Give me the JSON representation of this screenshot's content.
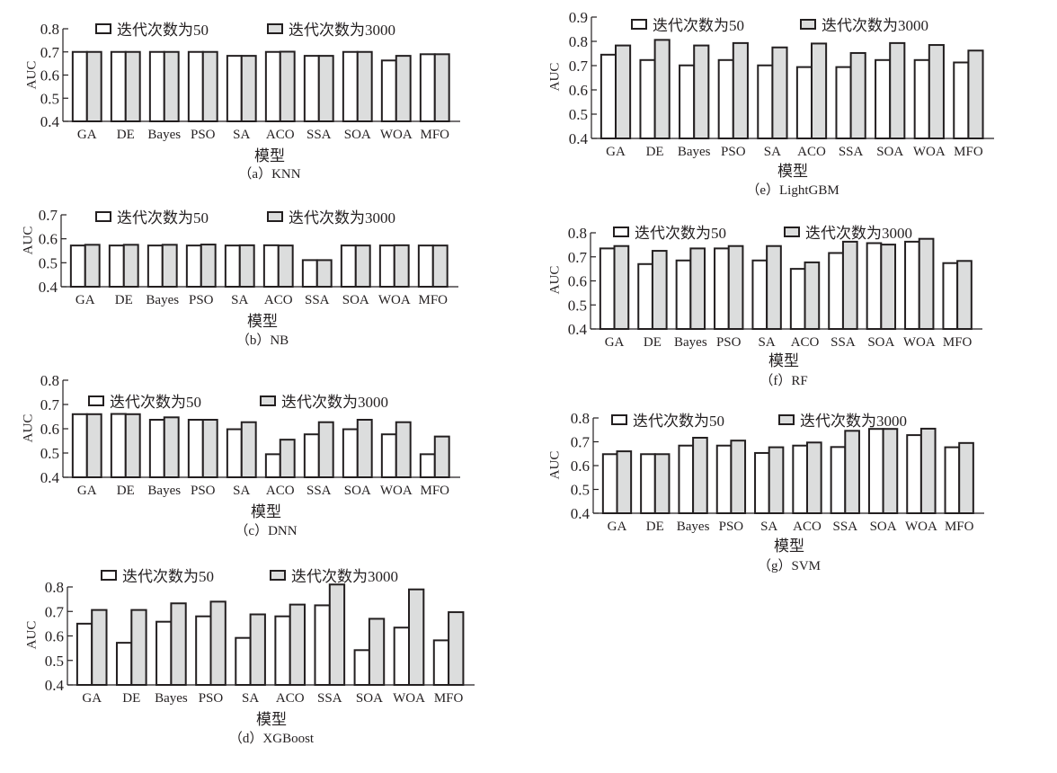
{
  "legend": {
    "series_50": "迭代次数为50",
    "series_3000": "迭代次数为3000",
    "color_50": "#ffffff",
    "color_3000": "#dcdddd",
    "stroke": "#231f20"
  },
  "chart_data": [
    {
      "id": "a",
      "type": "bar",
      "title": "（a）KNN",
      "xlabel": "模型",
      "ylabel": "AUC",
      "ylim": [
        0.4,
        0.8
      ],
      "yticks": [
        "0.4",
        "0.5",
        "0.6",
        "0.7",
        "0.8"
      ],
      "categories": [
        "GA",
        "DE",
        "Bayes",
        "PSO",
        "SA",
        "ACO",
        "SSA",
        "SOA",
        "WOA",
        "MFO"
      ],
      "series": [
        {
          "name": "迭代次数为50",
          "values": [
            0.7,
            0.7,
            0.7,
            0.7,
            0.683,
            0.7,
            0.683,
            0.7,
            0.663,
            0.69
          ]
        },
        {
          "name": "迭代次数为3000",
          "values": [
            0.7,
            0.7,
            0.7,
            0.7,
            0.683,
            0.701,
            0.683,
            0.7,
            0.683,
            0.69
          ]
        }
      ],
      "legend_position": "top"
    },
    {
      "id": "b",
      "type": "bar",
      "title": "（b）NB",
      "xlabel": "模型",
      "ylabel": "AUC",
      "ylim": [
        0.4,
        0.7
      ],
      "yticks": [
        "0.4",
        "0.5",
        "0.6",
        "0.7"
      ],
      "categories": [
        "GA",
        "DE",
        "Bayes",
        "PSO",
        "SA",
        "ACO",
        "SSA",
        "SOA",
        "WOA",
        "MFO"
      ],
      "series": [
        {
          "name": "迭代次数为50",
          "values": [
            0.572,
            0.572,
            0.572,
            0.572,
            0.572,
            0.573,
            0.511,
            0.572,
            0.572,
            0.572
          ]
        },
        {
          "name": "迭代次数为3000",
          "values": [
            0.575,
            0.575,
            0.575,
            0.576,
            0.573,
            0.572,
            0.511,
            0.572,
            0.573,
            0.572
          ]
        }
      ],
      "legend_position": "top"
    },
    {
      "id": "c",
      "type": "bar",
      "title": "（c）DNN",
      "xlabel": "模型",
      "ylabel": "AUC",
      "ylim": [
        0.4,
        0.8
      ],
      "yticks": [
        "0.4",
        "0.5",
        "0.6",
        "0.7",
        "0.8"
      ],
      "categories": [
        "GA",
        "DE",
        "Bayes",
        "PSO",
        "SA",
        "ACO",
        "SSA",
        "SOA",
        "WOA",
        "MFO"
      ],
      "series": [
        {
          "name": "迭代次数为50",
          "values": [
            0.66,
            0.661,
            0.637,
            0.637,
            0.598,
            0.495,
            0.577,
            0.598,
            0.577,
            0.495
          ]
        },
        {
          "name": "迭代次数为3000",
          "values": [
            0.66,
            0.66,
            0.647,
            0.637,
            0.627,
            0.555,
            0.627,
            0.637,
            0.627,
            0.568
          ]
        }
      ],
      "legend_position": "top"
    },
    {
      "id": "d",
      "type": "bar",
      "title": "（d）XGBoost",
      "xlabel": "模型",
      "ylabel": "AUC",
      "ylim": [
        0.4,
        0.8
      ],
      "yticks": [
        "0.4",
        "0.5",
        "0.6",
        "0.7",
        "0.8"
      ],
      "categories": [
        "GA",
        "DE",
        "Bayes",
        "PSO",
        "SA",
        "ACO",
        "SSA",
        "SOA",
        "WOA",
        "MFO"
      ],
      "series": [
        {
          "name": "迭代次数为50",
          "values": [
            0.65,
            0.572,
            0.658,
            0.68,
            0.592,
            0.68,
            0.725,
            0.542,
            0.634,
            0.582
          ]
        },
        {
          "name": "迭代次数为3000",
          "values": [
            0.706,
            0.706,
            0.733,
            0.74,
            0.688,
            0.728,
            0.81,
            0.67,
            0.79,
            0.697
          ]
        }
      ],
      "legend_position": "top"
    },
    {
      "id": "e",
      "type": "bar",
      "title": "（e）LightGBM",
      "xlabel": "模型",
      "ylabel": "AUC",
      "ylim": [
        0.4,
        0.9
      ],
      "yticks": [
        "0.4",
        "0.5",
        "0.6",
        "0.7",
        "0.8",
        "0.9"
      ],
      "categories": [
        "GA",
        "DE",
        "Bayes",
        "PSO",
        "SA",
        "ACO",
        "SSA",
        "SOA",
        "WOA",
        "MFO"
      ],
      "series": [
        {
          "name": "迭代次数为50",
          "values": [
            0.745,
            0.723,
            0.701,
            0.723,
            0.701,
            0.694,
            0.694,
            0.723,
            0.723,
            0.713
          ]
        },
        {
          "name": "迭代次数为3000",
          "values": [
            0.783,
            0.806,
            0.783,
            0.793,
            0.775,
            0.791,
            0.752,
            0.793,
            0.785,
            0.762
          ]
        }
      ],
      "legend_position": "top"
    },
    {
      "id": "f",
      "type": "bar",
      "title": "（f）RF",
      "xlabel": "模型",
      "ylabel": "AUC",
      "ylim": [
        0.4,
        0.8
      ],
      "yticks": [
        "0.4",
        "0.5",
        "0.6",
        "0.7",
        "0.8"
      ],
      "categories": [
        "GA",
        "DE",
        "Bayes",
        "PSO",
        "SA",
        "ACO",
        "SSA",
        "SOA",
        "WOA",
        "MFO"
      ],
      "series": [
        {
          "name": "迭代次数为50",
          "values": [
            0.735,
            0.67,
            0.685,
            0.735,
            0.685,
            0.65,
            0.716,
            0.757,
            0.763,
            0.674
          ]
        },
        {
          "name": "迭代次数为3000",
          "values": [
            0.745,
            0.725,
            0.735,
            0.745,
            0.745,
            0.677,
            0.763,
            0.751,
            0.775,
            0.683
          ]
        }
      ],
      "legend_position": "top"
    },
    {
      "id": "g",
      "type": "bar",
      "title": "（g）SVM",
      "xlabel": "模型",
      "ylabel": "AUC",
      "ylim": [
        0.4,
        0.8
      ],
      "yticks": [
        "0.4",
        "0.5",
        "0.6",
        "0.7",
        "0.8"
      ],
      "categories": [
        "GA",
        "DE",
        "Bayes",
        "PSO",
        "SA",
        "ACO",
        "SSA",
        "SOA",
        "WOA",
        "MFO"
      ],
      "series": [
        {
          "name": "迭代次数为50",
          "values": [
            0.648,
            0.648,
            0.684,
            0.684,
            0.653,
            0.684,
            0.678,
            0.754,
            0.728,
            0.677
          ]
        },
        {
          "name": "迭代次数为3000",
          "values": [
            0.66,
            0.648,
            0.717,
            0.705,
            0.677,
            0.697,
            0.746,
            0.754,
            0.755,
            0.695
          ]
        }
      ],
      "legend_position": "top"
    }
  ]
}
